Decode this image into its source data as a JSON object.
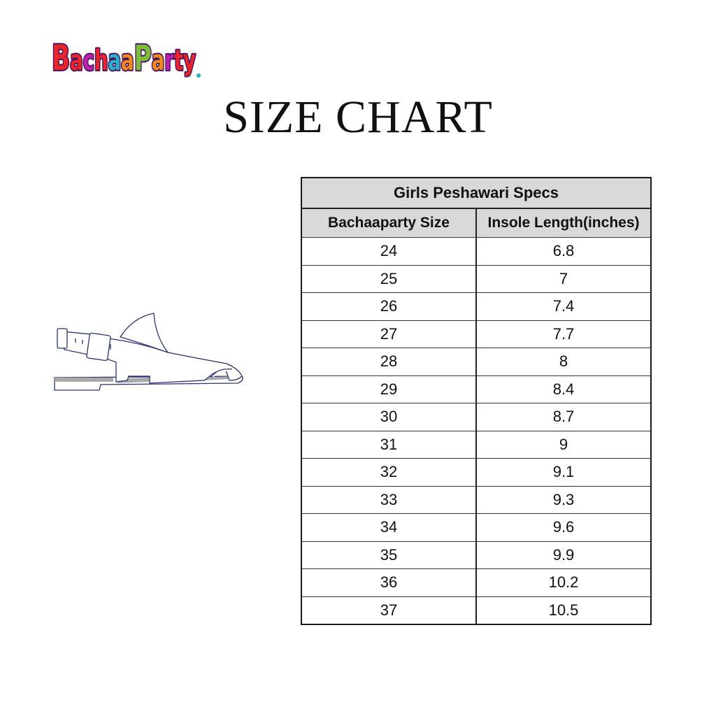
{
  "logo": {
    "text": "BachaaParty."
  },
  "title": "SIZE CHART",
  "table": {
    "caption": "Girls Peshawari Specs",
    "headers": [
      "Bachaaparty Size",
      "Insole Length(inches)"
    ],
    "rows": [
      [
        "24",
        "6.8"
      ],
      [
        "25",
        "7"
      ],
      [
        "26",
        "7.4"
      ],
      [
        "27",
        "7.7"
      ],
      [
        "28",
        "8"
      ],
      [
        "29",
        "8.4"
      ],
      [
        "30",
        "8.7"
      ],
      [
        "31",
        "9"
      ],
      [
        "32",
        "9.1"
      ],
      [
        "33",
        "9.3"
      ],
      [
        "34",
        "9.6"
      ],
      [
        "35",
        "9.9"
      ],
      [
        "36",
        "10.2"
      ],
      [
        "37",
        "10.5"
      ]
    ]
  },
  "illustration": {
    "icon": "peshawari-sandal-icon"
  }
}
